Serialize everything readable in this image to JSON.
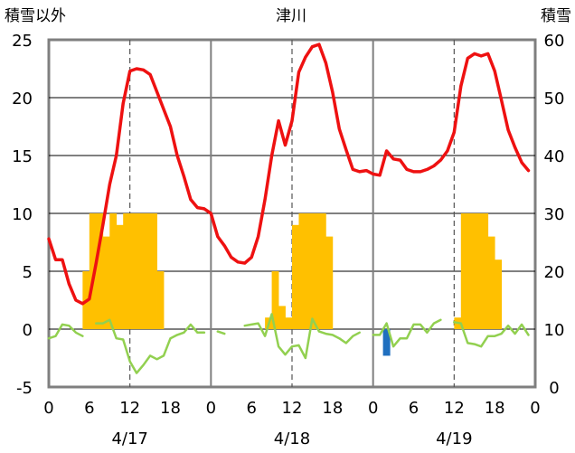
{
  "chart_data": {
    "type": "bar+line",
    "title": "津川",
    "left_axis_label": "積雪以外",
    "right_axis_label": "積雪",
    "left_ylim": [
      -5,
      25
    ],
    "left_ticks": [
      "25",
      "20",
      "15",
      "10",
      "5",
      "0",
      "-5"
    ],
    "right_ylim": [
      0,
      60
    ],
    "right_ticks": [
      "60",
      "50",
      "40",
      "30",
      "20",
      "10",
      "0"
    ],
    "x_hours": [
      0,
      72
    ],
    "hour_tick_labels": [
      "0",
      "6",
      "12",
      "18",
      "0",
      "6",
      "12",
      "18",
      "0",
      "6",
      "12",
      "18",
      "0"
    ],
    "day_labels": [
      "4/17",
      "4/18",
      "4/19"
    ],
    "day_boundaries_h": [
      24,
      48
    ],
    "noon_lines_h": [
      12,
      36,
      60
    ],
    "colors": {
      "temperature": "#ee1111",
      "sunshine": "#ffc000",
      "wind": "#92d050",
      "precipitation": "#1f6fbf",
      "snow_depth": "#7030a0",
      "frame": "#7f7f7f"
    },
    "series": [
      {
        "key": "temperature",
        "hours": [
          0,
          1,
          2,
          3,
          4,
          5,
          6,
          7,
          8,
          9,
          10,
          11,
          12,
          13,
          14,
          15,
          16,
          17,
          18,
          19,
          20,
          21,
          22,
          23,
          24,
          25,
          26,
          27,
          28,
          29,
          30,
          31,
          32,
          33,
          34,
          35,
          36,
          37,
          38,
          39,
          40,
          41,
          42,
          43,
          44,
          45,
          46,
          47,
          48,
          49,
          50,
          51,
          52,
          53,
          54,
          55,
          56,
          57,
          58,
          59,
          60,
          61,
          62,
          63,
          64,
          65,
          66,
          67,
          68,
          69,
          70,
          71
        ],
        "values": [
          7.8,
          6.0,
          6.0,
          3.9,
          2.5,
          2.2,
          2.6,
          5.7,
          9.0,
          12.5,
          15.0,
          19.5,
          22.3,
          22.5,
          22.4,
          22.0,
          20.5,
          19.0,
          17.5,
          15.0,
          13.2,
          11.2,
          10.5,
          10.4,
          10.0,
          8.0,
          7.2,
          6.2,
          5.8,
          5.7,
          6.2,
          8.0,
          11.2,
          15.0,
          18.0,
          15.9,
          18.0,
          22.2,
          23.5,
          24.4,
          24.6,
          23.0,
          20.5,
          17.3,
          15.5,
          13.8,
          13.6,
          13.7,
          13.4,
          13.3,
          15.4,
          14.7,
          14.6,
          13.8,
          13.6,
          13.6,
          13.8,
          14.1,
          14.6,
          15.4,
          17.0,
          21.0,
          23.4,
          23.8,
          23.6,
          23.8,
          22.3,
          19.8,
          17.2,
          15.7,
          14.4,
          13.7
        ]
      },
      {
        "key": "sunshine",
        "unit": "x0.1 h",
        "hours": [
          5,
          6,
          7,
          8,
          9,
          10,
          11,
          12,
          13,
          14,
          15,
          16,
          17,
          32,
          33,
          34,
          35,
          36,
          37,
          38,
          39,
          40,
          41,
          42,
          43,
          44,
          45,
          46,
          47,
          48,
          49,
          50,
          51,
          52,
          53,
          54,
          55,
          56,
          57,
          58,
          59,
          60,
          61,
          62,
          63,
          64,
          65,
          66,
          67,
          68,
          69,
          70,
          71
        ],
        "values": [
          5,
          10,
          10,
          8,
          10,
          9,
          10,
          10,
          10,
          10,
          10,
          5,
          0,
          1,
          5,
          2,
          1,
          9,
          10,
          10,
          10,
          10,
          8,
          0,
          0,
          0,
          0,
          0,
          0,
          0,
          0,
          0,
          0,
          0,
          0,
          0,
          0,
          0,
          0,
          0,
          0,
          1,
          10,
          10,
          10,
          10,
          8,
          6,
          0,
          0,
          0,
          0,
          0
        ]
      },
      {
        "key": "wind",
        "hours": [
          0,
          1,
          2,
          3,
          4,
          5,
          7,
          8,
          9,
          10,
          11,
          12,
          13,
          14,
          15,
          16,
          17,
          18,
          19,
          20,
          21,
          22,
          23,
          25,
          26,
          29,
          30,
          31,
          32,
          33,
          34,
          35,
          36,
          37,
          38,
          39,
          40,
          41,
          42,
          43,
          44,
          45,
          46,
          48,
          49,
          50,
          51,
          52,
          53,
          54,
          55,
          56,
          57,
          58,
          60,
          61,
          62,
          63,
          64,
          65,
          66,
          67,
          68,
          69,
          70,
          71
        ],
        "values": [
          -0.8,
          -0.6,
          0.4,
          0.3,
          -0.3,
          -0.6,
          0.5,
          0.5,
          0.8,
          -0.8,
          -0.9,
          -2.8,
          -3.8,
          -3.1,
          -2.3,
          -2.6,
          -2.3,
          -0.8,
          -0.5,
          -0.3,
          0.4,
          -0.3,
          -0.3,
          -0.2,
          -0.4,
          0.3,
          0.4,
          0.5,
          -0.6,
          1.3,
          -1.5,
          -2.2,
          -1.5,
          -1.4,
          -2.5,
          0.9,
          -0.2,
          -0.4,
          -0.5,
          -0.8,
          -1.2,
          -0.6,
          -0.3,
          -0.5,
          -0.5,
          0.5,
          -1.5,
          -0.8,
          -0.8,
          0.4,
          0.4,
          -0.3,
          0.5,
          0.8,
          0.6,
          0.5,
          -1.2,
          -1.3,
          -1.5,
          -0.6,
          -0.6,
          -0.4,
          0.3,
          -0.4,
          0.4,
          -0.5
        ]
      },
      {
        "key": "precipitation",
        "hours": [
          50
        ],
        "values": [
          -2.3
        ]
      },
      {
        "key": "snow_depth",
        "hours": [
          0,
          72
        ],
        "values": [
          0,
          0
        ]
      }
    ]
  }
}
